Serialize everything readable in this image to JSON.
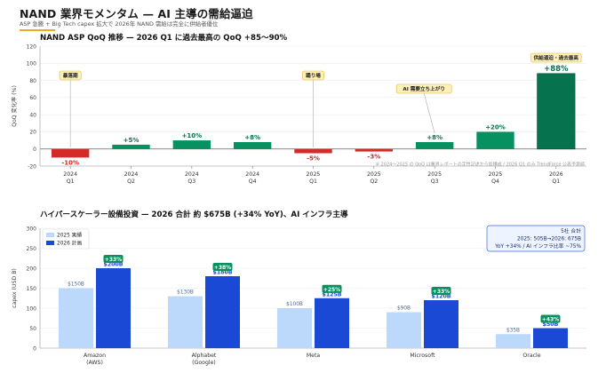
{
  "header": {
    "title": "NAND 業界モメンタム — AI 主導の需給逼迫",
    "subtitle": "ASP 急騰 + Big Tech capex 拡大で 2026年 NAND 需給は完全に供給者優位"
  },
  "colors": {
    "positive": "#089160",
    "negative": "#d32a2a",
    "highlight": "#07734e",
    "bar2025": "#bcd9fb",
    "bar2026": "#1a49d6",
    "callout_fill": "#fdf1b8",
    "callout_border": "#e2b43c"
  },
  "chart_data": [
    {
      "type": "bar",
      "title": "NAND ASP QoQ 推移 — 2026 Q1 に過去最高の QoQ +85〜90%",
      "ylabel": "QoQ 変化率 (%)",
      "ylim": [
        -20,
        120
      ],
      "yticks": [
        -20,
        0,
        20,
        40,
        60,
        80,
        100,
        120
      ],
      "grid": true,
      "categories": [
        [
          "2024",
          "Q1"
        ],
        [
          "2024",
          "Q2"
        ],
        [
          "2024",
          "Q3"
        ],
        [
          "2024",
          "Q4"
        ],
        [
          "2025",
          "Q1"
        ],
        [
          "2025",
          "Q2"
        ],
        [
          "2025",
          "Q3"
        ],
        [
          "2025",
          "Q4"
        ],
        [
          "2026",
          "Q1"
        ]
      ],
      "values": [
        -10,
        5,
        10,
        8,
        -5,
        -3,
        8,
        20,
        88
      ],
      "labels": [
        "-10%",
        "+5%",
        "+10%",
        "+8%",
        "-5%",
        "-3%",
        "+8%",
        "+20%",
        "+88%"
      ],
      "annotations": [
        {
          "text": "暴落期",
          "index": 0
        },
        {
          "text": "踊り場",
          "index": 4
        },
        {
          "text": "AI 需要立ち上がり",
          "index": 6
        },
        {
          "text": "供給逼迫・過去最高",
          "index": 8
        }
      ],
      "footnote": "※ 2024〜2025 の QoQ は業界レポートの定性記述から仮構成 / 2026 Q1 のみ TrendForce 公表予測値"
    },
    {
      "type": "bar",
      "title": "ハイパースケーラー設備投資 — 2026 合計 約 $675B (+34% YoY)、AI インフラ主導",
      "ylabel": "capex (USD B)",
      "ylim": [
        0,
        300
      ],
      "yticks": [
        0,
        50,
        100,
        150,
        200,
        250,
        300
      ],
      "grid": true,
      "categories": [
        [
          "Amazon",
          "(AWS)"
        ],
        [
          "Alphabet",
          "(Google)"
        ],
        [
          "Meta"
        ],
        [
          "Microsoft"
        ],
        [
          "Oracle"
        ]
      ],
      "series": [
        {
          "name": "2025 実績",
          "values": [
            150,
            130,
            100,
            90,
            35
          ],
          "labels": [
            "$150B",
            "$130B",
            "$100B",
            "$90B",
            "$35B"
          ]
        },
        {
          "name": "2026 計画",
          "values": [
            200,
            180,
            125,
            120,
            50
          ],
          "labels": [
            "$200B",
            "$180B",
            "$125B",
            "$120B",
            "$50B"
          ]
        }
      ],
      "growth_labels": [
        "+33%",
        "+38%",
        "+25%",
        "+33%",
        "+43%"
      ],
      "legend": "top-left",
      "summary_box": [
        "5社 合計",
        "2025: 505B→2026: 675B",
        "YoY +34% / AI インフラ比率 ~75%"
      ]
    }
  ]
}
